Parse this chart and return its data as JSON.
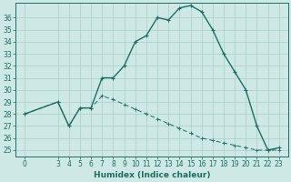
{
  "xlabel": "Humidex (Indice chaleur)",
  "bg_color": "#cde8e5",
  "line_color": "#1e6e62",
  "grid_color": "#aacfcb",
  "x_main": [
    0,
    3,
    4,
    5,
    6,
    7,
    8,
    9,
    10,
    11,
    12,
    13,
    14,
    15,
    16,
    17,
    18,
    19,
    20,
    21,
    22,
    23
  ],
  "y_main": [
    28,
    29,
    27,
    28.5,
    28.5,
    31,
    31,
    32,
    34,
    34.5,
    36,
    35.8,
    36.8,
    37,
    36.5,
    35,
    33,
    31.5,
    30,
    27,
    25,
    25.2
  ],
  "x_second": [
    0,
    3,
    4,
    5,
    6,
    7,
    8,
    9,
    10,
    11,
    12,
    13,
    14,
    15,
    16,
    17,
    18,
    19,
    20,
    21,
    22,
    23
  ],
  "y_second": [
    28,
    29,
    27,
    28.5,
    28.5,
    29.5,
    29.2,
    28.8,
    28.4,
    28.0,
    27.6,
    27.2,
    26.8,
    26.4,
    26.0,
    25.8,
    25.6,
    25.4,
    25.2,
    25.0,
    25.0,
    25.0
  ],
  "ylim": [
    24.5,
    37.2
  ],
  "yticks": [
    25,
    26,
    27,
    28,
    29,
    30,
    31,
    32,
    33,
    34,
    35,
    36
  ],
  "xticks": [
    0,
    3,
    4,
    5,
    6,
    7,
    8,
    9,
    10,
    11,
    12,
    13,
    14,
    15,
    16,
    17,
    18,
    19,
    20,
    21,
    22,
    23
  ],
  "tick_fontsize": 5.5,
  "xlabel_fontsize": 6.5
}
